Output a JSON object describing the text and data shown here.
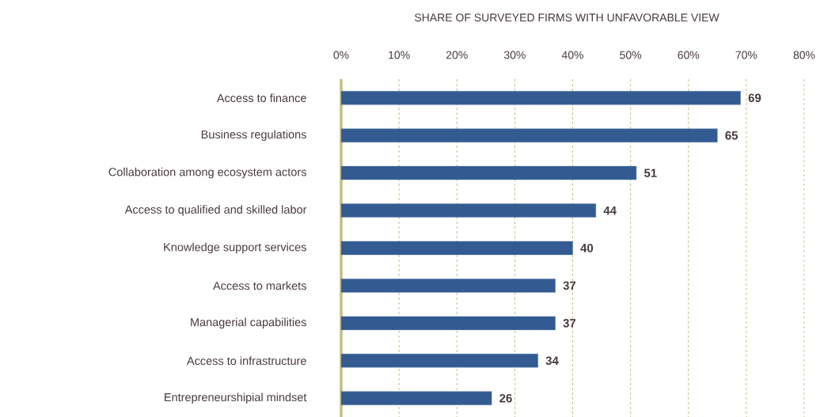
{
  "chart_data": {
    "type": "bar",
    "orientation": "horizontal",
    "title": "SHARE OF SURVEYED FIRMS WITH UNFAVORABLE VIEW",
    "categories": [
      "Access to finance",
      "Business regulations",
      "Collaboration among ecosystem actors",
      "Access to qualified and skilled labor",
      "Knowledge support services",
      "Access to markets",
      "Managerial capabilities",
      "Access to infrastructure",
      "Entrepreneurshipial mindset"
    ],
    "values": [
      69,
      65,
      51,
      44,
      40,
      37,
      37,
      34,
      26
    ],
    "color": "#335b92",
    "data_labels": true,
    "grid": "x",
    "xlim": [
      0,
      80
    ],
    "xticks": [
      {
        "value": 0,
        "label": "0%"
      },
      {
        "value": 10,
        "label": "10%"
      },
      {
        "value": 20,
        "label": "20%"
      },
      {
        "value": 30,
        "label": "30%"
      },
      {
        "value": 40,
        "label": "40%"
      },
      {
        "value": 50,
        "label": "50%"
      },
      {
        "value": 60,
        "label": "60%"
      },
      {
        "value": 70,
        "label": "70%"
      },
      {
        "value": 80,
        "label": "80%"
      }
    ]
  }
}
